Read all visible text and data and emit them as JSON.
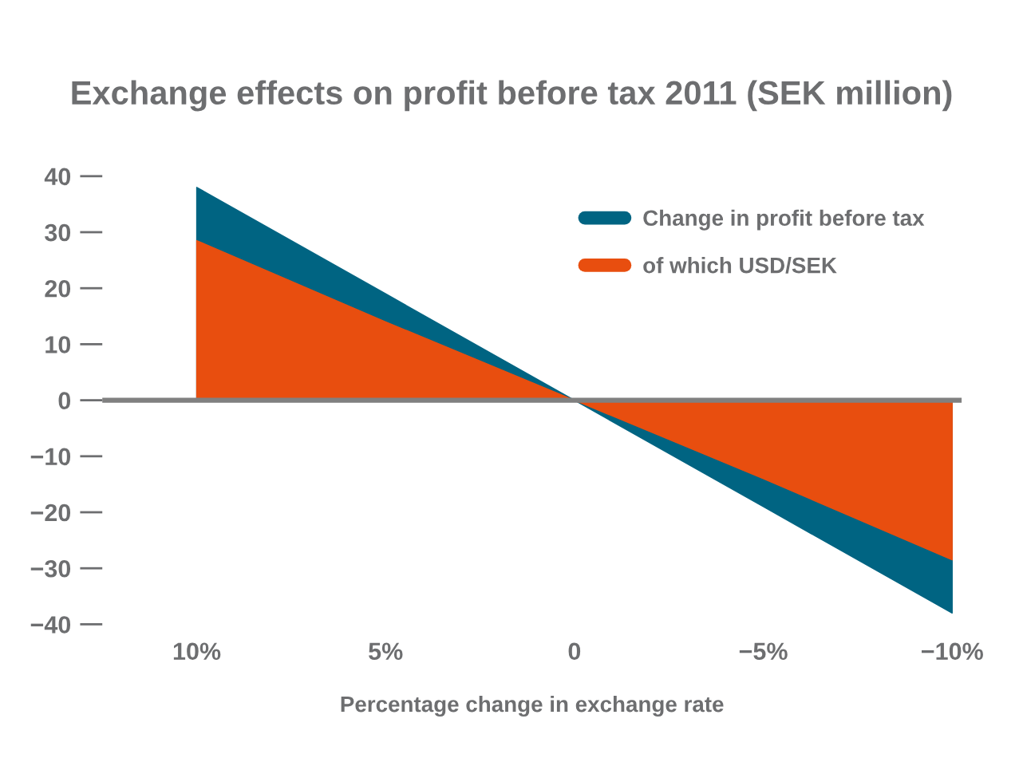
{
  "chart_data": {
    "type": "area",
    "title": "Exchange effects on profit before tax 2011 (SEK million)",
    "xlabel": "Percentage change in exchange rate",
    "categories": [
      "10%",
      "5%",
      "0",
      "−5%",
      "−10%"
    ],
    "series": [
      {
        "name": "Change in profit before tax",
        "color": "#006482",
        "values": [
          38,
          19,
          0,
          -19,
          -38
        ]
      },
      {
        "name": "of which USD/SEK",
        "color": "#e84e0f",
        "values": [
          28.5,
          14,
          0,
          -14,
          -28.5
        ]
      }
    ],
    "ylim": [
      -40,
      40
    ],
    "ref_lines": [
      {
        "axis": "y",
        "value": 0,
        "color": "#808080"
      }
    ],
    "yticks": [
      40,
      30,
      20,
      10,
      0,
      {
        "value": -10,
        "label": "−10"
      },
      {
        "value": -20,
        "label": "−20"
      },
      {
        "value": -30,
        "label": "−30"
      },
      {
        "value": -40,
        "label": "−40"
      }
    ],
    "grid": false,
    "legend": "top right"
  }
}
